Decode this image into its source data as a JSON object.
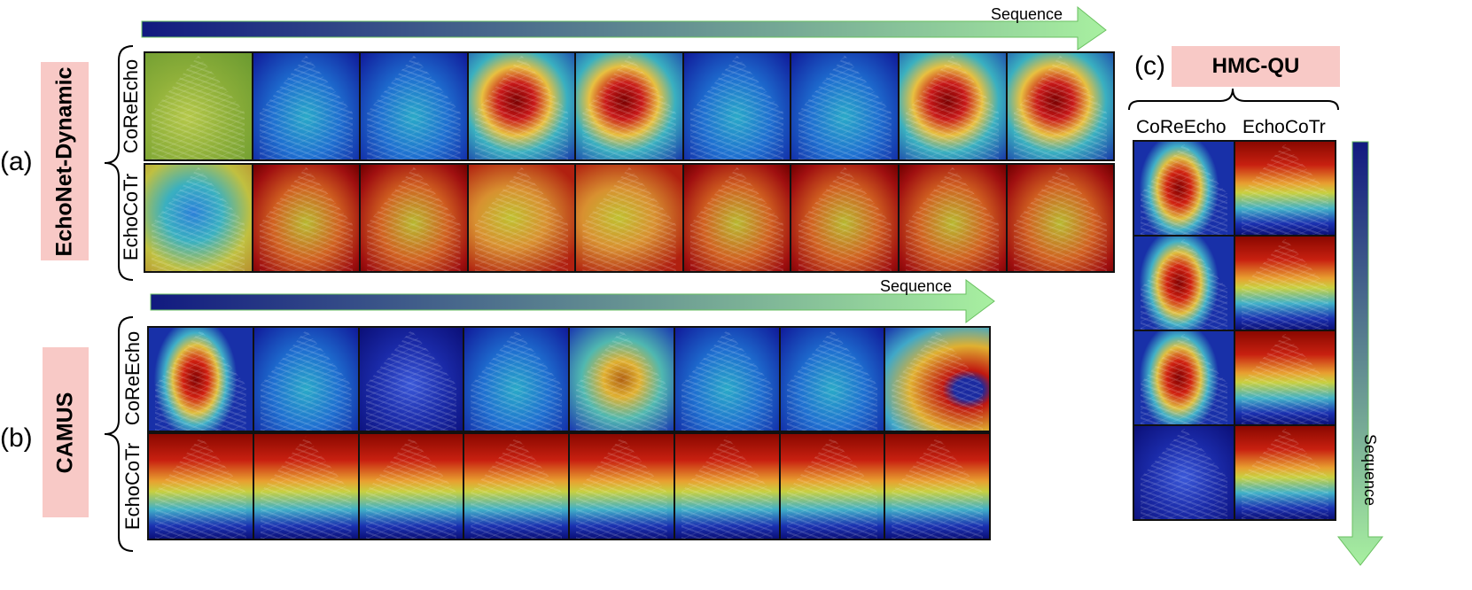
{
  "panels": {
    "a": {
      "tag": "(a)",
      "dataset": "EchoNet-Dynamic",
      "sequence_label": "Sequence",
      "rows": [
        {
          "label": "CoReEcho",
          "frames": [
            "yellowgreen",
            "blue",
            "blue",
            "redcenter",
            "redcenter",
            "blue",
            "blue",
            "redcenter",
            "redcenter"
          ]
        },
        {
          "label": "EchoCoTr",
          "frames": [
            "bluecenter",
            "red",
            "red",
            "redyellow",
            "redyellow",
            "red",
            "red",
            "red",
            "red"
          ]
        }
      ]
    },
    "b": {
      "tag": "(b)",
      "dataset": "CAMUS",
      "sequence_label": "Sequence",
      "rows": [
        {
          "label": "CoReEcho",
          "frames": [
            "redvert",
            "blue",
            "deepblue",
            "blue",
            "yellowcenter",
            "blue",
            "blue",
            "redside"
          ]
        },
        {
          "label": "EchoCoTr",
          "frames": [
            "redtop",
            "redtop",
            "redtop",
            "redtop",
            "redtop",
            "redtop",
            "redtop",
            "redtop"
          ]
        }
      ]
    },
    "c": {
      "tag": "(c)",
      "dataset": "HMC-QU",
      "sequence_label": "Sequence",
      "columns": [
        {
          "label": "CoReEcho",
          "frames": [
            "redvert",
            "redvert",
            "redvert",
            "deepblue"
          ]
        },
        {
          "label": "EchoCoTr",
          "frames": [
            "redtop",
            "redtop",
            "redtop",
            "redtop"
          ]
        }
      ]
    }
  },
  "colors": {
    "pink_box": "#f8c9c6",
    "arrow_start": "#111a80",
    "arrow_end": "#a8f0a0"
  }
}
